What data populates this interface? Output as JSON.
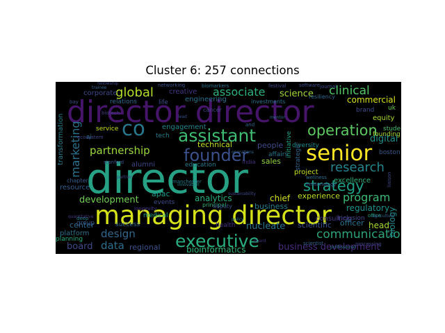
{
  "title": "Cluster 6: 257 connections",
  "wordcloud": {
    "background": "#000000",
    "words": [
      {
        "text": "director",
        "color": "#26a184"
      },
      {
        "text": "director director",
        "color": "#46156a"
      },
      {
        "text": "managing director",
        "color": "#d5e21a"
      },
      {
        "text": "executive",
        "color": "#29af7f"
      },
      {
        "text": "senior",
        "color": "#fde725"
      },
      {
        "text": "assistant",
        "color": "#3fbc73"
      },
      {
        "text": "founder",
        "color": "#3b518b"
      },
      {
        "text": "co",
        "color": "#2a788e"
      },
      {
        "text": "operation",
        "color": "#5ec962"
      },
      {
        "text": "strategy",
        "color": "#1fa187"
      },
      {
        "text": "research",
        "color": "#25858e"
      },
      {
        "text": "communication",
        "color": "#2ea37a"
      },
      {
        "text": "global",
        "color": "#b5de2b"
      },
      {
        "text": "associate",
        "color": "#2db27d"
      },
      {
        "text": "clinical",
        "color": "#52c569"
      },
      {
        "text": "partnership",
        "color": "#9bd93c"
      },
      {
        "text": "marketing",
        "color": "#2c728e"
      },
      {
        "text": "program",
        "color": "#3aba76"
      },
      {
        "text": "business development",
        "color": "#472c7a"
      },
      {
        "text": "development",
        "color": "#73d056"
      },
      {
        "text": "design",
        "color": "#31688e"
      },
      {
        "text": "data",
        "color": "#2e6f8e"
      },
      {
        "text": "bioinformatics",
        "color": "#35b779"
      },
      {
        "text": "board",
        "color": "#3e4a89"
      },
      {
        "text": "science",
        "color": "#a2da37"
      },
      {
        "text": "commercial",
        "color": "#d8e219"
      },
      {
        "text": "digital",
        "color": "#21918c"
      },
      {
        "text": "regulatory",
        "color": "#20928c"
      },
      {
        "text": "experience",
        "color": "#bddf26"
      },
      {
        "text": "chief",
        "color": "#d2e21b"
      },
      {
        "text": "business",
        "color": "#27808e"
      },
      {
        "text": "nucleate",
        "color": "#2b758e"
      },
      {
        "text": "scientific",
        "color": "#3b528b"
      },
      {
        "text": "consulting",
        "color": "#453882"
      },
      {
        "text": "officer",
        "color": "#2c738e"
      },
      {
        "text": "head",
        "color": "#addc30"
      },
      {
        "text": "biology",
        "color": "#238a8d"
      },
      {
        "text": "analytics",
        "color": "#29af7f"
      },
      {
        "text": "technical",
        "color": "#c2df23"
      },
      {
        "text": "people",
        "color": "#3e4c8a"
      },
      {
        "text": "sales",
        "color": "#8fd744"
      },
      {
        "text": "apac",
        "color": "#1e9b8a"
      },
      {
        "text": "regional",
        "color": "#3b528b"
      },
      {
        "text": "creative",
        "color": "#443983"
      },
      {
        "text": "engineering",
        "color": "#2c728e"
      },
      {
        "text": "engagement",
        "color": "#24878e"
      },
      {
        "text": "alumni",
        "color": "#3f4889"
      },
      {
        "text": "education",
        "color": "#2a788e"
      },
      {
        "text": "center",
        "color": "#31688e"
      },
      {
        "text": "platform",
        "color": "#2d708e"
      },
      {
        "text": "planning",
        "color": "#27ad81"
      },
      {
        "text": "group",
        "color": "#365c8d"
      },
      {
        "text": "resource",
        "color": "#355f8d"
      },
      {
        "text": "transformation",
        "color": "#277f8e"
      },
      {
        "text": "corporate",
        "color": "#3e4a89"
      },
      {
        "text": "relations",
        "color": "#31688e"
      },
      {
        "text": "service",
        "color": "#c8e020"
      },
      {
        "text": "tech",
        "color": "#287d8e"
      },
      {
        "text": "project",
        "color": "#c5e021"
      },
      {
        "text": "excellence",
        "color": "#2fb47c"
      },
      {
        "text": "equity",
        "color": "#addc30"
      },
      {
        "text": "student",
        "color": "#4ac16d"
      },
      {
        "text": "founding",
        "color": "#a5db36"
      },
      {
        "text": "brand",
        "color": "#3e4c8a"
      },
      {
        "text": "affairs",
        "color": "#2a788e"
      },
      {
        "text": "initiative",
        "color": "#20a386"
      },
      {
        "text": "diversity",
        "color": "#228c8d"
      },
      {
        "text": "life",
        "color": "#3b528b"
      },
      {
        "text": "ai",
        "color": "#2c728e"
      },
      {
        "text": "boston",
        "color": "#38598c"
      },
      {
        "text": "inclusion",
        "color": "#3e4989"
      },
      {
        "text": "medical",
        "color": "#25ab82"
      },
      {
        "text": "events",
        "color": "#3d4d8a"
      },
      {
        "text": "health",
        "color": "#46337f"
      },
      {
        "text": "success",
        "color": "#31688e"
      },
      {
        "text": "principal",
        "color": "#35b779"
      },
      {
        "text": "deputy",
        "color": "#3a538b"
      },
      {
        "text": "uk",
        "color": "#6ccd5a"
      },
      {
        "text": "india",
        "color": "#46327e"
      },
      {
        "text": "strategic",
        "color": "#31688e"
      },
      {
        "text": "investments",
        "color": "#2c728e"
      },
      {
        "text": "resiliency",
        "color": "#31688e"
      },
      {
        "text": "networking",
        "color": "#3a548c"
      },
      {
        "text": "cancer",
        "color": "#404688"
      },
      {
        "text": "festival",
        "color": "#3f4889"
      },
      {
        "text": "software",
        "color": "#3d4e8a"
      },
      {
        "text": "ecosystem",
        "color": "#404588"
      },
      {
        "text": "chapter",
        "color": "#365d8d"
      },
      {
        "text": "manchester",
        "color": "#287d8e"
      },
      {
        "text": "stanford",
        "color": "#3b528b"
      },
      {
        "text": "biotech",
        "color": "#433e85"
      },
      {
        "text": "deep",
        "color": "#24868e"
      },
      {
        "text": "immunology",
        "color": "#39558c"
      },
      {
        "text": "wellness",
        "color": "#2e6e8e"
      },
      {
        "text": "liaison",
        "color": "#3e4a89"
      },
      {
        "text": "processing",
        "color": "#3f4889"
      },
      {
        "text": "office",
        "color": "#22a785"
      },
      {
        "text": "scientist",
        "color": "#32658e"
      },
      {
        "text": "longevity",
        "color": "#453781"
      },
      {
        "text": "bay",
        "color": "#3b528b"
      },
      {
        "text": "innovation",
        "color": "#26828e"
      },
      {
        "text": "policy",
        "color": "#2c728e"
      },
      {
        "text": "sustainability",
        "color": "#3e4a89"
      },
      {
        "text": "operations",
        "color": "#32648e"
      },
      {
        "text": "and",
        "color": "#31688e"
      },
      {
        "text": "journal",
        "color": "#3d4e8a"
      },
      {
        "text": "agriculture",
        "color": "#32648e"
      },
      {
        "text": "quantitative",
        "color": "#443a83"
      },
      {
        "text": "partner",
        "color": "#3e4989"
      },
      {
        "text": "professional",
        "color": "#2a768e"
      },
      {
        "text": "biomarkers",
        "color": "#2c728e"
      },
      {
        "text": "trainee",
        "color": "#32648e"
      },
      {
        "text": "fellowship",
        "color": "#3e4a89"
      },
      {
        "text": "board",
        "color": "#472f7d"
      },
      {
        "text": "lead",
        "color": "#3b528b"
      },
      {
        "text": "mentor",
        "color": "#2c728e"
      }
    ]
  }
}
